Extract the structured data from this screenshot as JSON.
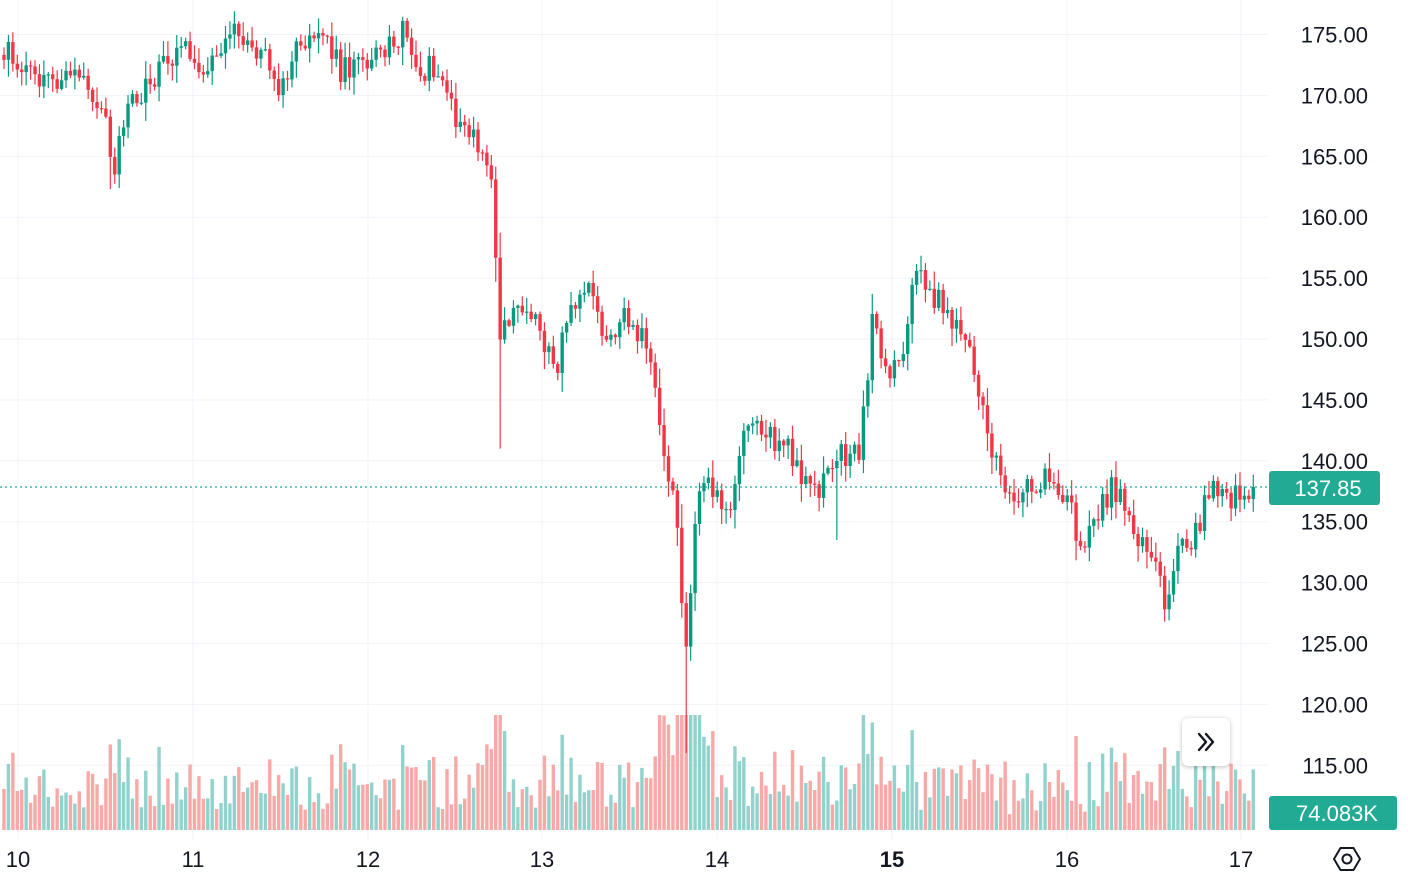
{
  "chart_data": {
    "type": "candlestick",
    "price_axis": {
      "ticks": [
        "175.00",
        "170.00",
        "165.00",
        "160.00",
        "155.00",
        "150.00",
        "145.00",
        "140.00",
        "135.00",
        "130.00",
        "125.00",
        "120.00",
        "115.00"
      ],
      "range": [
        111.0,
        177.8
      ],
      "grid": true
    },
    "time_axis": {
      "ticks": [
        "10",
        "11",
        "12",
        "13",
        "14",
        "15",
        "16",
        "17"
      ],
      "bold_tick": "15",
      "grid": true
    },
    "last_price": {
      "label": "137.85",
      "value": 137.85,
      "color": "#22ab94"
    },
    "last_volume": {
      "label": "74.083K",
      "color": "#22ab94"
    },
    "colors": {
      "up": "#089981",
      "down": "#f23645",
      "up_volume": "#92d2cc",
      "down_volume": "#f7a9a7",
      "grid": "#f0f3fa",
      "text": "#131722"
    },
    "anchors": [
      {
        "t": 0,
        "p": 174.0
      },
      {
        "t": 6,
        "p": 171.5
      },
      {
        "t": 10,
        "p": 171.2
      },
      {
        "t": 16,
        "p": 172.5
      },
      {
        "t": 22,
        "p": 169.0
      },
      {
        "t": 25,
        "p": 163.5
      },
      {
        "t": 28,
        "p": 170.0
      },
      {
        "t": 32,
        "p": 170.5
      },
      {
        "t": 36,
        "p": 172.5
      },
      {
        "t": 40,
        "p": 174.5
      },
      {
        "t": 46,
        "p": 172.0
      },
      {
        "t": 52,
        "p": 175.0
      },
      {
        "t": 58,
        "p": 173.5
      },
      {
        "t": 62,
        "p": 170.5
      },
      {
        "t": 67,
        "p": 174.5
      },
      {
        "t": 72,
        "p": 175.0
      },
      {
        "t": 76,
        "p": 172.0
      },
      {
        "t": 80,
        "p": 172.5
      },
      {
        "t": 86,
        "p": 173.5
      },
      {
        "t": 90,
        "p": 175.5
      },
      {
        "t": 94,
        "p": 172.0
      },
      {
        "t": 98,
        "p": 172.5
      },
      {
        "t": 102,
        "p": 168.5
      },
      {
        "t": 107,
        "p": 166.0
      },
      {
        "t": 110,
        "p": 163.5
      },
      {
        "t": 112,
        "p": 150.0
      },
      {
        "t": 116,
        "p": 152.5
      },
      {
        "t": 121,
        "p": 151.5
      },
      {
        "t": 124,
        "p": 147.0
      },
      {
        "t": 128,
        "p": 152.0
      },
      {
        "t": 132,
        "p": 153.5
      },
      {
        "t": 135,
        "p": 150.5
      },
      {
        "t": 140,
        "p": 151.5
      },
      {
        "t": 144,
        "p": 150.5
      },
      {
        "t": 147,
        "p": 146.5
      },
      {
        "t": 150,
        "p": 138.5
      },
      {
        "t": 152,
        "p": 134.5
      },
      {
        "t": 154,
        "p": 124.0
      },
      {
        "t": 156,
        "p": 135.0
      },
      {
        "t": 158,
        "p": 139.0
      },
      {
        "t": 161,
        "p": 136.5
      },
      {
        "t": 164,
        "p": 135.0
      },
      {
        "t": 166,
        "p": 141.0
      },
      {
        "t": 170,
        "p": 143.5
      },
      {
        "t": 173,
        "p": 142.0
      },
      {
        "t": 177,
        "p": 141.5
      },
      {
        "t": 180,
        "p": 138.5
      },
      {
        "t": 184,
        "p": 137.5
      },
      {
        "t": 187,
        "p": 140.0
      },
      {
        "t": 190,
        "p": 140.5
      },
      {
        "t": 193,
        "p": 141.0
      },
      {
        "t": 196,
        "p": 151.0
      },
      {
        "t": 199,
        "p": 147.5
      },
      {
        "t": 202,
        "p": 147.5
      },
      {
        "t": 204,
        "p": 152.0
      },
      {
        "t": 206,
        "p": 155.5
      },
      {
        "t": 210,
        "p": 153.5
      },
      {
        "t": 214,
        "p": 151.5
      },
      {
        "t": 218,
        "p": 149.0
      },
      {
        "t": 220,
        "p": 145.0
      },
      {
        "t": 223,
        "p": 141.0
      },
      {
        "t": 226,
        "p": 137.0
      },
      {
        "t": 228,
        "p": 136.0
      },
      {
        "t": 232,
        "p": 138.0
      },
      {
        "t": 236,
        "p": 139.0
      },
      {
        "t": 240,
        "p": 137.0
      },
      {
        "t": 243,
        "p": 133.0
      },
      {
        "t": 246,
        "p": 134.5
      },
      {
        "t": 250,
        "p": 138.0
      },
      {
        "t": 253,
        "p": 136.0
      },
      {
        "t": 256,
        "p": 133.0
      },
      {
        "t": 259,
        "p": 132.5
      },
      {
        "t": 262,
        "p": 128.0
      },
      {
        "t": 265,
        "p": 132.5
      },
      {
        "t": 268,
        "p": 133.0
      },
      {
        "t": 272,
        "p": 137.5
      },
      {
        "t": 276,
        "p": 137.0
      },
      {
        "t": 280,
        "p": 137.5
      },
      {
        "t": 282,
        "p": 137.85
      }
    ]
  }
}
